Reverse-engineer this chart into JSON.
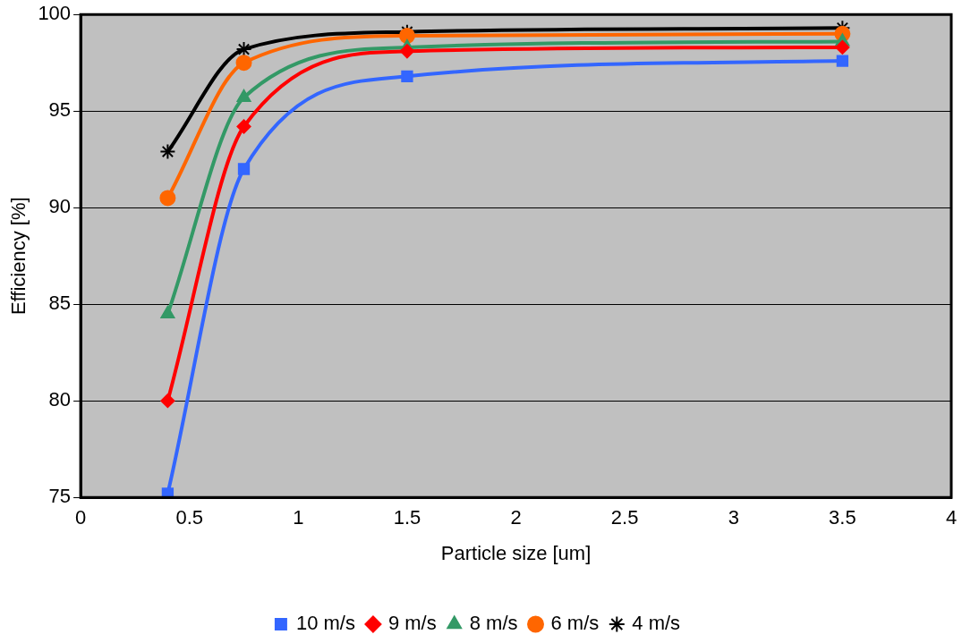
{
  "chart_data": {
    "type": "line",
    "xlabel": "Particle size [um]",
    "ylabel": "Efficiency [%]",
    "x": [
      0.4,
      0.75,
      1.5,
      3.5
    ],
    "series": [
      {
        "name": "10 m/s",
        "color": "#3366ff",
        "marker": "square",
        "values": [
          75.2,
          92.0,
          96.8,
          97.6
        ]
      },
      {
        "name": "9 m/s",
        "color": "#ff0000",
        "marker": "diamond",
        "values": [
          80.0,
          94.2,
          98.1,
          98.3
        ]
      },
      {
        "name": "8 m/s",
        "color": "#339966",
        "marker": "triangle",
        "values": [
          84.5,
          95.7,
          98.3,
          98.6
        ]
      },
      {
        "name": "6 m/s",
        "color": "#ff6600",
        "marker": "circle",
        "values": [
          90.5,
          97.5,
          98.9,
          99.0
        ]
      },
      {
        "name": "4 m/s",
        "color": "#000000",
        "marker": "cross",
        "values": [
          92.9,
          98.2,
          99.1,
          99.3
        ]
      }
    ],
    "xlim": [
      0,
      4
    ],
    "xticks": [
      0,
      0.5,
      1,
      1.5,
      2,
      2.5,
      3,
      3.5,
      4
    ],
    "ylim": [
      75,
      100
    ],
    "yticks": [
      75,
      80,
      85,
      90,
      95,
      100
    ],
    "grid": "y",
    "legend": "bottom"
  }
}
